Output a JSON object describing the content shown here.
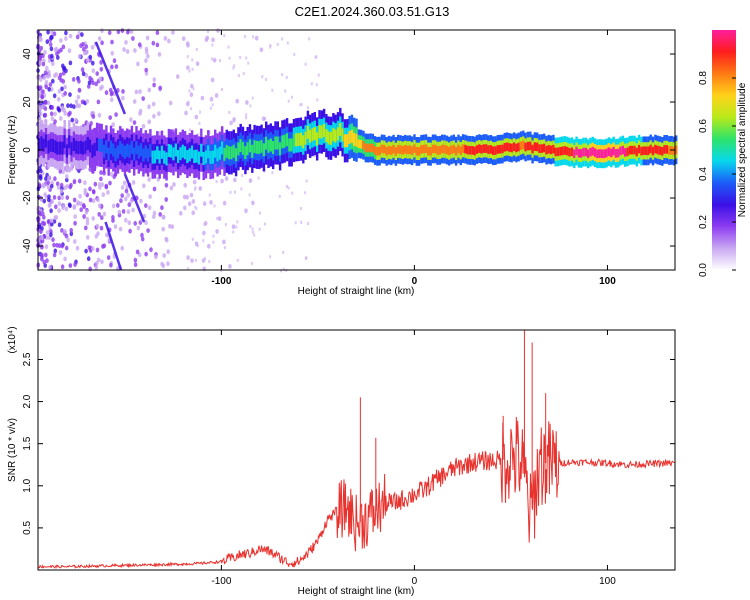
{
  "title": "C2E1.2024.360.03.51.G13",
  "colors": {
    "snr_line": "#e8322e",
    "axis": "#000000",
    "colormap": [
      "#ffffff",
      "#c9a7f2",
      "#8d3cf0",
      "#3b10e6",
      "#1c5cf8",
      "#06d8ec",
      "#2de36a",
      "#b8ea1a",
      "#ffd21a",
      "#ff7a14",
      "#ff1d1d",
      "#ff1e9c"
    ]
  },
  "chart_data": [
    {
      "type": "heatmap",
      "xlabel": "Height of straight line (km)",
      "ylabel": "Frequency (Hz)",
      "xlim": [
        -195,
        135
      ],
      "ylim": [
        -50,
        50
      ],
      "xticks": [
        -100,
        0,
        100
      ],
      "yticks": [
        -40,
        -20,
        0,
        20,
        40
      ],
      "grid": false,
      "colorbar": {
        "label": "Normalized spectral amplitude",
        "range": [
          0,
          1
        ],
        "ticks": [
          0.0,
          0.2,
          0.4,
          0.6,
          0.8
        ]
      },
      "ridge": {
        "x": [
          -190,
          -170,
          -155,
          -140,
          -125,
          -110,
          -100,
          -90,
          -80,
          -70,
          -60,
          -50,
          -40,
          -35,
          -30,
          -25,
          -20,
          -10,
          0,
          20,
          40,
          50,
          55,
          60,
          70,
          80,
          100,
          120,
          135
        ],
        "y": [
          2,
          1,
          0,
          -1,
          -2,
          -2,
          -1,
          0,
          1,
          2,
          5,
          6,
          7,
          5,
          3,
          1,
          0,
          0,
          0,
          0,
          0,
          1,
          2,
          1,
          0,
          -1,
          -1,
          0,
          0
        ],
        "amplitude": [
          0.3,
          0.3,
          0.35,
          0.4,
          0.45,
          0.45,
          0.5,
          0.55,
          0.55,
          0.55,
          0.6,
          0.6,
          0.65,
          0.7,
          0.75,
          0.8,
          0.85,
          0.85,
          0.85,
          0.85,
          0.9,
          0.9,
          0.85,
          0.9,
          0.9,
          0.95,
          1.0,
          0.9,
          0.85
        ]
      }
    },
    {
      "type": "line",
      "xlabel": "Height of straight line (km)",
      "ylabel": "SNR (10 * v/v)",
      "y_multiplier": "(x10⁴)",
      "xlim": [
        -195,
        135
      ],
      "ylim": [
        0,
        2.85
      ],
      "xticks": [
        -100,
        0,
        100
      ],
      "yticks": [
        0.5,
        1.0,
        1.5,
        2.0,
        2.5
      ],
      "grid": false,
      "series": [
        {
          "x": [
            -195,
            -180,
            -160,
            -140,
            -120,
            -110,
            -100,
            -90,
            -85,
            -80,
            -75,
            -70,
            -65,
            -60,
            -55,
            -50,
            -45,
            -40,
            -35,
            -30,
            -25,
            -20,
            -15,
            -10,
            -5,
            0,
            5,
            10,
            20,
            30,
            40,
            45,
            50,
            55,
            58,
            60,
            63,
            65,
            70,
            80,
            90,
            100,
            110,
            120,
            135
          ],
          "y": [
            0.04,
            0.04,
            0.05,
            0.06,
            0.07,
            0.08,
            0.1,
            0.18,
            0.2,
            0.25,
            0.22,
            0.15,
            0.08,
            0.1,
            0.2,
            0.35,
            0.6,
            0.7,
            0.75,
            0.55,
            0.6,
            0.7,
            0.8,
            0.8,
            0.85,
            0.9,
            0.95,
            1.05,
            1.2,
            1.28,
            1.3,
            1.3,
            1.35,
            1.3,
            1.0,
            0.6,
            1.0,
            1.3,
            1.25,
            1.28,
            1.28,
            1.27,
            1.25,
            1.26,
            1.27
          ]
        }
      ],
      "spikes": [
        {
          "x": -28,
          "y": 2.05
        },
        {
          "x": -20,
          "y": 1.57
        },
        {
          "x": 46,
          "y": 1.83
        },
        {
          "x": 57,
          "y": 2.85
        },
        {
          "x": 61,
          "y": 2.7
        },
        {
          "x": 68,
          "y": 2.1
        }
      ]
    }
  ]
}
